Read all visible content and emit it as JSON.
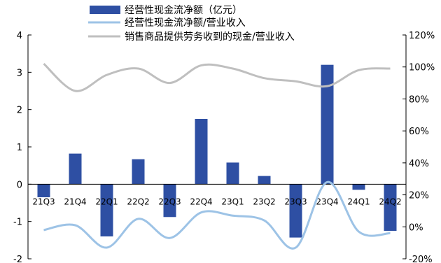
{
  "chart_data": {
    "type": "bar",
    "categories": [
      "21Q3",
      "21Q4",
      "22Q1",
      "22Q2",
      "22Q3",
      "22Q4",
      "23Q1",
      "23Q2",
      "23Q3",
      "23Q4",
      "24Q1",
      "24Q2"
    ],
    "series": [
      {
        "name": "经营性现金流净额（亿元）",
        "type": "bar",
        "axis": "left",
        "color": "#2E4FA3",
        "values": [
          -0.35,
          0.82,
          -1.4,
          0.67,
          -0.88,
          1.75,
          0.58,
          0.22,
          -1.43,
          3.2,
          -0.15,
          -1.25
        ]
      },
      {
        "name": "经营性现金流净额/营业收入",
        "type": "line",
        "axis": "right",
        "color": "#9DC3E6",
        "values": [
          -2,
          1,
          -13,
          5,
          -7,
          9,
          7,
          4,
          -13,
          28,
          -3,
          -4
        ]
      },
      {
        "name": "销售商品提供劳务收到的现金/营业收入",
        "type": "line",
        "axis": "right",
        "color": "#BFBFBF",
        "values": [
          102,
          85,
          95,
          99,
          90,
          101,
          99,
          93,
          91,
          88,
          98,
          99
        ]
      }
    ],
    "y_left": {
      "ylim": [
        -2,
        4
      ],
      "ticks": [
        "-2",
        "-1",
        "0",
        "1",
        "2",
        "3",
        "4"
      ]
    },
    "y_right": {
      "ylim": [
        -20,
        120
      ],
      "ticks": [
        "-20%",
        "0%",
        "20%",
        "40%",
        "60%",
        "80%",
        "100%",
        "120%"
      ]
    },
    "grid": false,
    "legend_position": "top"
  }
}
